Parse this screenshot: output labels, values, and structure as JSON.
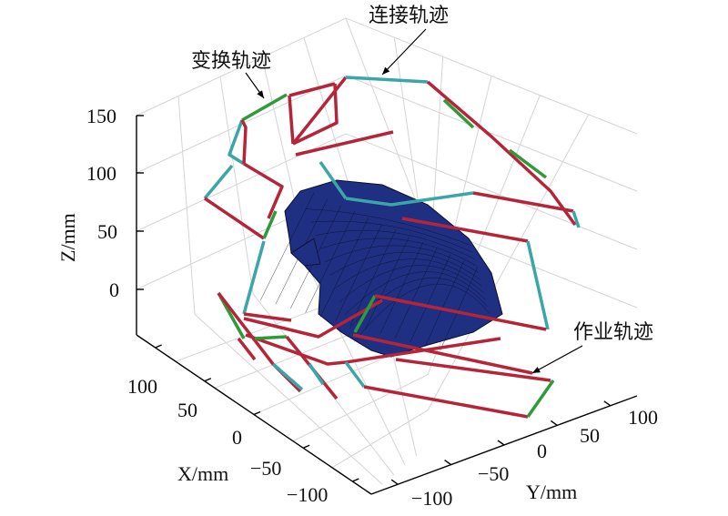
{
  "chart_data": {
    "type": "3d-line",
    "title": "",
    "xlabel": "X/mm",
    "ylabel": "Y/mm",
    "zlabel": "Z/mm",
    "x_ticks": [
      "100",
      "50",
      "0",
      "−50",
      "−100"
    ],
    "y_ticks": [
      "−100",
      "−50",
      "0",
      "50",
      "100"
    ],
    "z_ticks": [
      "150",
      "100",
      "50",
      "0"
    ],
    "xlim": [
      -120,
      120
    ],
    "ylim": [
      -120,
      120
    ],
    "zlim": [
      -40,
      170
    ],
    "grid": true,
    "annotations": [
      {
        "text": "连接轨迹",
        "series": "connection"
      },
      {
        "text": "变换轨迹",
        "series": "transition"
      },
      {
        "text": "作业轨迹",
        "series": "work"
      }
    ],
    "series_colors": {
      "work": "#b5253a",
      "connection": "#3aa6a8",
      "transition": "#2e9a3a",
      "surface": "#1f2f82",
      "mesh": "#0a0f2a"
    }
  }
}
